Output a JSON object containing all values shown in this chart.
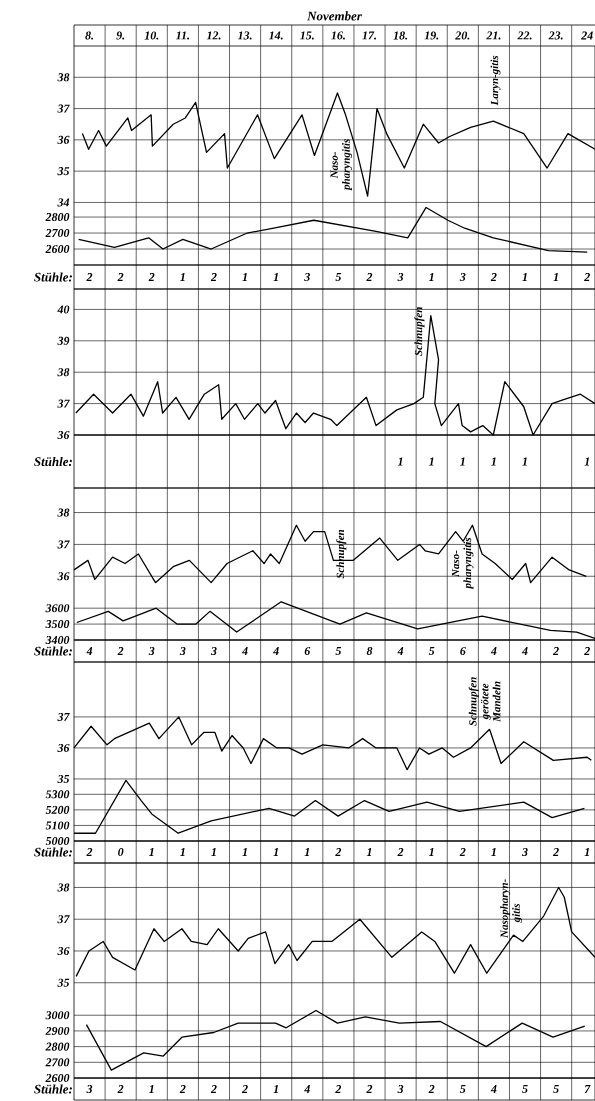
{
  "chart_data": [
    {
      "type": "line",
      "xlabel": "November",
      "xlim": [
        8,
        24.75
      ],
      "xticks": [
        {
          "value": 8.5,
          "label": "8."
        },
        {
          "value": 9.5,
          "label": "9."
        },
        {
          "value": 10.5,
          "label": "10."
        },
        {
          "value": 11.5,
          "label": "11."
        },
        {
          "value": 12.5,
          "label": "12."
        },
        {
          "value": 13.5,
          "label": "13."
        },
        {
          "value": 14.5,
          "label": "14."
        },
        {
          "value": 15.5,
          "label": "15."
        },
        {
          "value": 16.5,
          "label": "16."
        },
        {
          "value": 17.5,
          "label": "17."
        },
        {
          "value": 18.5,
          "label": "18."
        },
        {
          "value": 19.5,
          "label": "19."
        },
        {
          "value": 20.5,
          "label": "20."
        },
        {
          "value": 21.5,
          "label": "21."
        },
        {
          "value": 22.5,
          "label": "22."
        },
        {
          "value": 23.5,
          "label": "23."
        },
        {
          "value": 24.5,
          "label": "24"
        }
      ],
      "ylim": [
        32,
        39
      ],
      "yticks": [
        {
          "value": 34,
          "label": "34"
        },
        {
          "value": 35,
          "label": "35"
        },
        {
          "value": 36,
          "label": "36"
        },
        {
          "value": 37,
          "label": "37"
        },
        {
          "value": 38,
          "label": "38"
        }
      ],
      "y2lim": [
        2500,
        3870
      ],
      "y2ticks": [
        {
          "value": 2600,
          "label": "2600"
        },
        {
          "value": 2700,
          "label": "2700"
        },
        {
          "value": 2800,
          "label": "2800"
        }
      ],
      "grid": "y",
      "series": [
        {
          "color": "#000000",
          "x": [
            8.27,
            8.47,
            8.79,
            9.04,
            9.73,
            9.85,
            10.48,
            10.52,
            11.19,
            11.58,
            11.91,
            12.26,
            12.84,
            12.93,
            13.9,
            14.44,
            15.33,
            15.73,
            16.47,
            16.73,
            17.1,
            17.44,
            17.74,
            18.05,
            18.62,
            19.23,
            19.72,
            20.06,
            20.75,
            21.48,
            22.46,
            23.21,
            23.88,
            24.75
          ],
          "values": [
            36.2,
            35.7,
            36.3,
            35.8,
            36.7,
            36.3,
            36.8,
            35.8,
            36.5,
            36.7,
            37.2,
            35.6,
            36.2,
            35.1,
            36.8,
            35.4,
            36.8,
            35.5,
            37.5,
            36.8,
            35.6,
            34.2,
            37.0,
            36.2,
            35.1,
            36.5,
            35.9,
            36.1,
            36.4,
            36.6,
            36.2,
            35.1,
            36.2,
            35.7
          ]
        },
        {
          "color": "#000000",
          "axis": "y2",
          "x": [
            8.15,
            9.3,
            10.4,
            10.86,
            11.5,
            12.41,
            13.57,
            14.42,
            15.71,
            17.71,
            18.73,
            19.32,
            20.02,
            20.56,
            21.48,
            23.25,
            24.5
          ],
          "values": [
            2660,
            2610,
            2670,
            2600,
            2660,
            2600,
            2700,
            2730,
            2780,
            2710,
            2670,
            2860,
            2780,
            2730,
            2670,
            2590,
            2580
          ]
        }
      ],
      "annotations": [
        "Naso-pharyngitis",
        "Laryn-gitis"
      ]
    },
    {
      "type": "other",
      "ylabel": "Stühle:",
      "categories": [
        "2",
        "2",
        "2",
        "1",
        "2",
        "1",
        "1",
        "3",
        "5",
        "2",
        "3",
        "1",
        "3",
        "2",
        "1",
        "1",
        "2"
      ]
    },
    {
      "type": "line",
      "xlim": [
        8,
        24.75
      ],
      "xticks": [
        {
          "value": 8.5,
          "label": null
        },
        {
          "value": 9.5,
          "label": null
        },
        {
          "value": 10.5,
          "label": null
        },
        {
          "value": 11.5,
          "label": null
        },
        {
          "value": 12.5,
          "label": null
        },
        {
          "value": 13.5,
          "label": null
        },
        {
          "value": 14.5,
          "label": null
        },
        {
          "value": 15.5,
          "label": null
        },
        {
          "value": 16.5,
          "label": null
        },
        {
          "value": 17.5,
          "label": null
        },
        {
          "value": 18.5,
          "label": null
        },
        {
          "value": 19.5,
          "label": null
        },
        {
          "value": 20.5,
          "label": null
        },
        {
          "value": 21.5,
          "label": null
        },
        {
          "value": 22.5,
          "label": null
        },
        {
          "value": 23.5,
          "label": null
        },
        {
          "value": 24.5,
          "label": null
        }
      ],
      "ylim": [
        36,
        40.65
      ],
      "yticks": [
        {
          "value": 36,
          "label": "36"
        },
        {
          "value": 37,
          "label": "37"
        },
        {
          "value": 38,
          "label": "38"
        },
        {
          "value": 39,
          "label": "39"
        },
        {
          "value": 40,
          "label": "40"
        }
      ],
      "grid": "y",
      "tick_labels": "y",
      "series": [
        {
          "color": "#000000",
          "x": [
            8.06,
            8.63,
            9.24,
            9.83,
            10.23,
            10.69,
            10.85,
            11.28,
            11.7,
            12.19,
            12.65,
            12.75,
            13.2,
            13.48,
            13.91,
            14.14,
            14.48,
            14.81,
            15.15,
            15.43,
            15.7,
            16.25,
            16.45,
            17.4,
            17.71,
            18.38,
            18.93,
            19.23,
            19.47,
            19.72,
            19.6,
            19.81,
            20.36,
            20.48,
            20.75,
            21.14,
            21.48,
            21.85,
            22.46,
            22.76,
            23.37,
            23.67,
            24.28,
            24.75
          ],
          "values": [
            36.7,
            37.3,
            36.7,
            37.3,
            36.6,
            37.7,
            36.7,
            37.2,
            36.5,
            37.3,
            37.6,
            36.5,
            37.0,
            36.5,
            37.0,
            36.7,
            37.1,
            36.2,
            36.7,
            36.4,
            36.7,
            36.5,
            36.3,
            37.2,
            36.3,
            36.8,
            37.0,
            37.2,
            39.8,
            38.4,
            37.0,
            36.3,
            37.0,
            36.3,
            36.1,
            36.3,
            36.0,
            37.7,
            36.9,
            36.0,
            37.0,
            37.1,
            37.3,
            37.0
          ]
        }
      ],
      "annotations": [
        "Schnupfen"
      ]
    },
    {
      "type": "other",
      "ylabel": "Stühle:",
      "categories": [
        null,
        null,
        null,
        null,
        null,
        null,
        null,
        null,
        null,
        null,
        "1",
        "1",
        "1",
        "1",
        "1",
        null,
        "1"
      ]
    },
    {
      "type": "line",
      "xlim": [
        8,
        24.75
      ],
      "xticks": [
        {
          "value": 8.5,
          "label": null
        },
        {
          "value": 9.5,
          "label": null
        },
        {
          "value": 10.5,
          "label": null
        },
        {
          "value": 11.5,
          "label": null
        },
        {
          "value": 12.5,
          "label": null
        },
        {
          "value": 13.5,
          "label": null
        },
        {
          "value": 14.5,
          "label": null
        },
        {
          "value": 15.5,
          "label": null
        },
        {
          "value": 16.5,
          "label": null
        },
        {
          "value": 17.5,
          "label": null
        },
        {
          "value": 18.5,
          "label": null
        },
        {
          "value": 19.5,
          "label": null
        },
        {
          "value": 20.5,
          "label": null
        },
        {
          "value": 21.5,
          "label": null
        },
        {
          "value": 22.5,
          "label": null
        },
        {
          "value": 23.5,
          "label": null
        },
        {
          "value": 24.5,
          "label": null
        }
      ],
      "ylim": [
        34,
        38.77
      ],
      "yticks": [
        {
          "value": 36,
          "label": "36"
        },
        {
          "value": 37,
          "label": "37"
        },
        {
          "value": 38,
          "label": "38"
        }
      ],
      "y2lim": [
        3400,
        4355
      ],
      "y2ticks": [
        {
          "value": 3400,
          "label": "3400"
        },
        {
          "value": 3500,
          "label": "3500"
        },
        {
          "value": 3600,
          "label": "3600"
        }
      ],
      "grid": "y",
      "tick_labels": "y",
      "series": [
        {
          "color": "#000000",
          "x": [
            8.0,
            8.45,
            8.67,
            9.24,
            9.64,
            10.07,
            10.62,
            11.19,
            11.71,
            12.41,
            12.92,
            13.75,
            14.11,
            14.32,
            14.6,
            15.15,
            15.43,
            15.7,
            16.06,
            16.34,
            16.98,
            17.83,
            18.41,
            19.11,
            19.29,
            19.72,
            20.27,
            20.51,
            20.81,
            21.12,
            21.54,
            22.09,
            22.52,
            22.68,
            23.37,
            23.92,
            24.47
          ],
          "values": [
            36.2,
            36.5,
            35.9,
            36.6,
            36.4,
            36.7,
            35.8,
            36.3,
            36.5,
            35.8,
            36.4,
            36.8,
            36.4,
            36.7,
            36.4,
            37.6,
            37.1,
            37.4,
            37.4,
            36.5,
            36.5,
            37.2,
            36.5,
            37.0,
            36.8,
            36.7,
            37.4,
            37.1,
            37.6,
            36.7,
            36.4,
            35.9,
            36.4,
            35.8,
            36.6,
            36.2,
            36.0
          ]
        },
        {
          "color": "#000000",
          "axis": "y2",
          "x": [
            8.09,
            9.1,
            9.58,
            10.64,
            11.31,
            11.92,
            12.37,
            13.23,
            14.66,
            16.55,
            17.4,
            19.05,
            21.12,
            23.32,
            24.16,
            24.75
          ],
          "values": [
            3510,
            3580,
            3520,
            3600,
            3500,
            3500,
            3580,
            3450,
            3640,
            3500,
            3570,
            3470,
            3550,
            3460,
            3450,
            3410
          ]
        }
      ],
      "annotations": [
        "Schnupfen",
        "Naso-pharyngitis"
      ]
    },
    {
      "type": "other",
      "ylabel": "Stühle:",
      "categories": [
        "4",
        "2",
        "3",
        "3",
        "3",
        "4",
        "4",
        "6",
        "5",
        "8",
        "4",
        "5",
        "6",
        "4",
        "4",
        "2",
        "2"
      ]
    },
    {
      "type": "line",
      "xlim": [
        8,
        24.75
      ],
      "xticks": [
        {
          "value": 8.5,
          "label": null
        },
        {
          "value": 9.5,
          "label": null
        },
        {
          "value": 10.5,
          "label": null
        },
        {
          "value": 11.5,
          "label": null
        },
        {
          "value": 12.5,
          "label": null
        },
        {
          "value": 13.5,
          "label": null
        },
        {
          "value": 14.5,
          "label": null
        },
        {
          "value": 15.5,
          "label": null
        },
        {
          "value": 16.5,
          "label": null
        },
        {
          "value": 17.5,
          "label": null
        },
        {
          "value": 18.5,
          "label": null
        },
        {
          "value": 19.5,
          "label": null
        },
        {
          "value": 20.5,
          "label": null
        },
        {
          "value": 21.5,
          "label": null
        },
        {
          "value": 22.5,
          "label": null
        },
        {
          "value": 23.5,
          "label": null
        },
        {
          "value": 24.5,
          "label": null
        }
      ],
      "ylim": [
        33,
        38.77
      ],
      "yticks": [
        {
          "value": 35,
          "label": "35"
        },
        {
          "value": 36,
          "label": "36"
        },
        {
          "value": 37,
          "label": "37"
        }
      ],
      "y2lim": [
        5000,
        6150
      ],
      "y2ticks": [
        {
          "value": 5000,
          "label": "5000"
        },
        {
          "value": 5100,
          "label": "5100"
        },
        {
          "value": 5200,
          "label": "5200"
        },
        {
          "value": 5300,
          "label": "5300"
        }
      ],
      "grid": "y",
      "tick_labels": "y",
      "series": [
        {
          "color": "#000000",
          "x": [
            8.0,
            8.55,
            9.06,
            9.3,
            10.42,
            10.73,
            11.37,
            11.78,
            12.17,
            12.53,
            12.75,
            13.08,
            13.44,
            13.69,
            14.09,
            14.52,
            14.91,
            15.33,
            16.0,
            16.83,
            17.28,
            17.71,
            18.38,
            18.71,
            19.11,
            19.41,
            19.84,
            20.2,
            20.75,
            21.36,
            21.73,
            22.46,
            23.41,
            24.5,
            24.63
          ],
          "values": [
            36.0,
            36.7,
            36.1,
            36.3,
            36.8,
            36.3,
            37.0,
            36.1,
            36.5,
            36.5,
            35.9,
            36.4,
            36.0,
            35.5,
            36.3,
            36.0,
            36.0,
            35.8,
            36.1,
            36.0,
            36.3,
            36.0,
            36.0,
            35.3,
            36.0,
            35.8,
            36.0,
            35.7,
            36.0,
            36.6,
            35.5,
            36.2,
            35.6,
            35.7,
            35.6
          ]
        },
        {
          "color": "#000000",
          "axis": "y2",
          "x": [
            8.0,
            8.69,
            9.67,
            10.16,
            10.52,
            11.35,
            12.41,
            14.27,
            15.09,
            15.76,
            16.49,
            17.34,
            18.13,
            19.35,
            20.39,
            22.46,
            23.37,
            24.41
          ],
          "values": [
            5050,
            5050,
            5390,
            5260,
            5170,
            5050,
            5130,
            5210,
            5160,
            5260,
            5160,
            5260,
            5190,
            5250,
            5190,
            5250,
            5150,
            5210
          ]
        }
      ],
      "annotations": [
        "Schnupfen gerötete Mandeln"
      ]
    },
    {
      "type": "other",
      "ylabel": "Stühle:",
      "categories": [
        "2",
        "0",
        "1",
        "1",
        "1",
        "1",
        "1",
        "1",
        "2",
        "1",
        "2",
        "1",
        "2",
        "1",
        "3",
        "2",
        "1"
      ]
    },
    {
      "type": "line",
      "xlim": [
        8,
        24.75
      ],
      "xticks": [
        {
          "value": 8.5,
          "label": null
        },
        {
          "value": 9.5,
          "label": null
        },
        {
          "value": 10.5,
          "label": null
        },
        {
          "value": 11.5,
          "label": null
        },
        {
          "value": 12.5,
          "label": null
        },
        {
          "value": 13.5,
          "label": null
        },
        {
          "value": 14.5,
          "label": null
        },
        {
          "value": 15.5,
          "label": null
        },
        {
          "value": 16.5,
          "label": null
        },
        {
          "value": 17.5,
          "label": null
        },
        {
          "value": 18.5,
          "label": null
        },
        {
          "value": 19.5,
          "label": null
        },
        {
          "value": 20.5,
          "label": null
        },
        {
          "value": 21.5,
          "label": null
        },
        {
          "value": 22.5,
          "label": null
        },
        {
          "value": 23.5,
          "label": null
        },
        {
          "value": 24.5,
          "label": null
        }
      ],
      "ylim": [
        32,
        38.77
      ],
      "yticks": [
        {
          "value": 35,
          "label": "35"
        },
        {
          "value": 36,
          "label": "36"
        },
        {
          "value": 37,
          "label": "37"
        },
        {
          "value": 38,
          "label": "38"
        }
      ],
      "y2lim": [
        2600,
        3970
      ],
      "y2ticks": [
        {
          "value": 2600,
          "label": "2600"
        },
        {
          "value": 2700,
          "label": "2700"
        },
        {
          "value": 2800,
          "label": "2800"
        },
        {
          "value": 2900,
          "label": "2900"
        },
        {
          "value": 3000,
          "label": "3000"
        }
      ],
      "grid": "y",
      "tick_labels": "y",
      "series": [
        {
          "color": "#000000",
          "x": [
            8.07,
            8.48,
            8.94,
            9.24,
            9.96,
            10.57,
            10.9,
            11.47,
            11.77,
            12.28,
            12.64,
            13.28,
            13.6,
            14.16,
            14.46,
            14.9,
            15.17,
            15.66,
            16.29,
            17.19,
            18.22,
            19.18,
            19.6,
            20.23,
            20.75,
            21.27,
            22.13,
            22.43,
            23.1,
            23.58,
            23.76,
            24.0,
            24.75
          ],
          "values": [
            35.2,
            36.0,
            36.3,
            35.8,
            35.4,
            36.7,
            36.3,
            36.7,
            36.3,
            36.2,
            36.7,
            36.0,
            36.4,
            36.6,
            35.6,
            36.2,
            35.7,
            36.3,
            36.3,
            37.0,
            35.8,
            36.6,
            36.3,
            35.3,
            36.2,
            35.3,
            36.5,
            36.3,
            37.1,
            38.0,
            37.7,
            36.6,
            35.8
          ]
        },
        {
          "color": "#000000",
          "axis": "y2",
          "x": [
            8.4,
            9.2,
            10.24,
            10.87,
            11.47,
            12.49,
            13.28,
            14.48,
            14.82,
            15.78,
            16.47,
            17.37,
            18.46,
            19.78,
            21.25,
            22.41,
            23.4,
            24.42
          ],
          "values": [
            2940,
            2650,
            2760,
            2740,
            2860,
            2890,
            2950,
            2950,
            2920,
            3030,
            2950,
            2990,
            2950,
            2960,
            2800,
            2950,
            2860,
            2930
          ]
        }
      ],
      "annotations": [
        "Nasopharyn-gitis"
      ]
    },
    {
      "type": "other",
      "ylabel": "Stühle:",
      "categories": [
        "3",
        "2",
        "1",
        "2",
        "2",
        "2",
        "1",
        "4",
        "2",
        "2",
        "3",
        "2",
        "5",
        "4",
        "5",
        "5",
        "7"
      ]
    }
  ]
}
